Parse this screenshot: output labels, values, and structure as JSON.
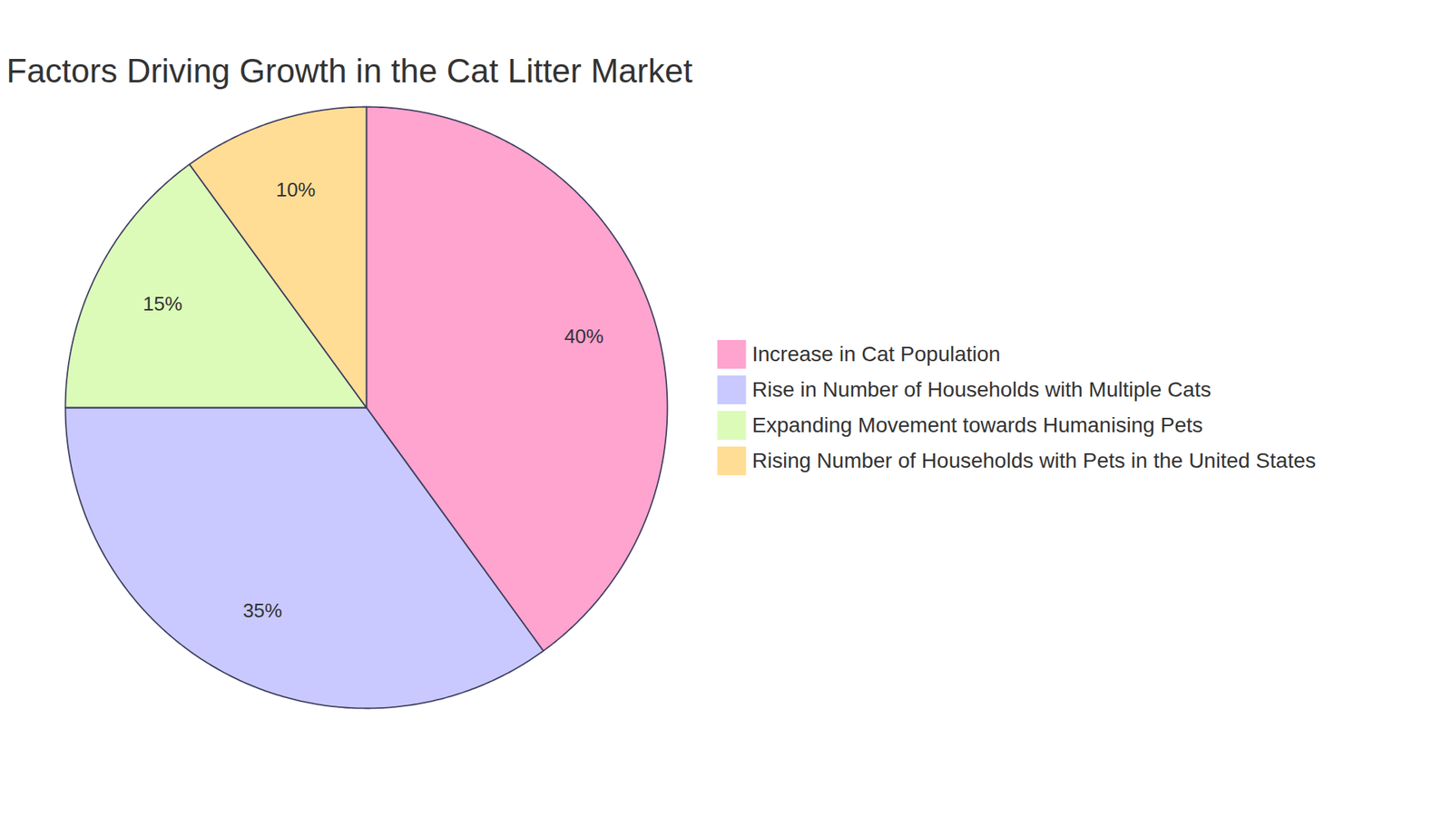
{
  "chart_data": {
    "type": "pie",
    "title": "Factors Driving Growth in the Cat Litter Market",
    "categories": [
      "Increase in Cat Population",
      "Rise in Number of Households with Multiple Cats",
      "Expanding Movement towards Humanising Pets",
      "Rising Number of Households with Pets in the United States"
    ],
    "values": [
      40,
      35,
      15,
      10
    ],
    "value_labels": [
      "40%",
      "35%",
      "15%",
      "10%"
    ],
    "colors": [
      "#ffa3cf",
      "#c9c9ff",
      "#dcfbb9",
      "#ffdd95"
    ],
    "data_labels": true,
    "legend": "right"
  }
}
